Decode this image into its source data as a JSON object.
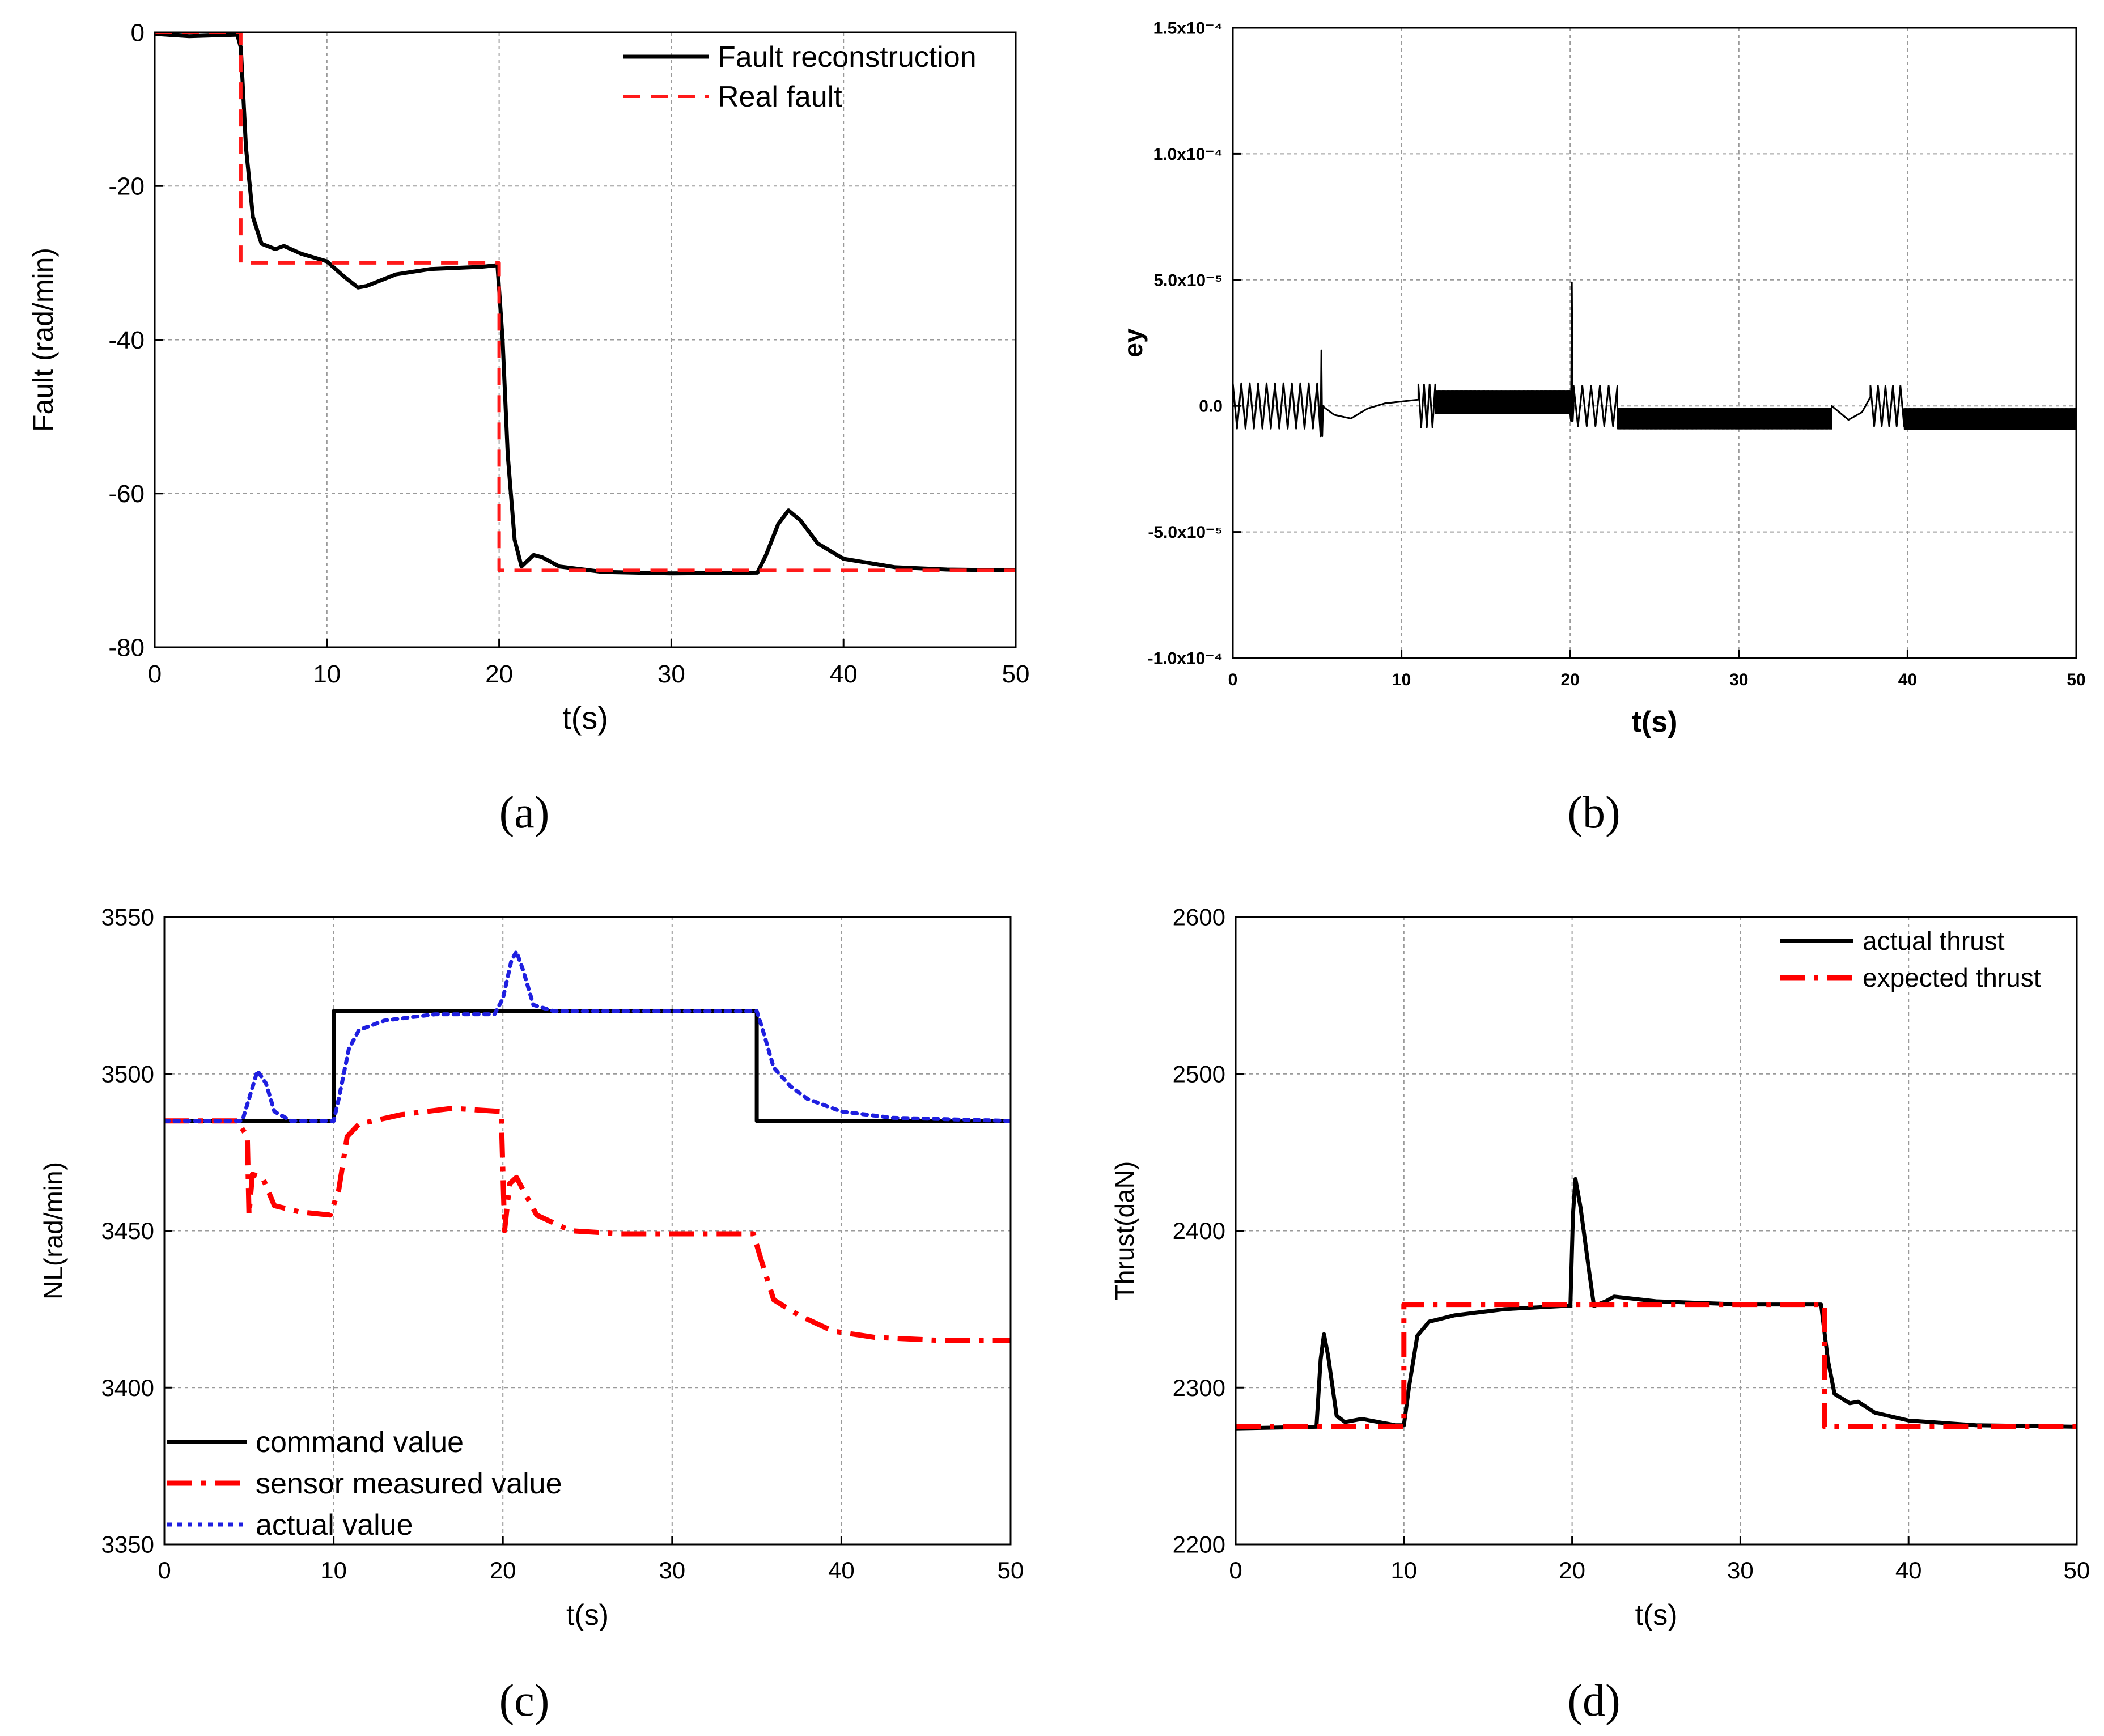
{
  "figure": {
    "labels": [
      "(a)",
      "(b)",
      "(c)",
      "(d)"
    ]
  },
  "chart_data": [
    {
      "id": "a",
      "type": "line",
      "label": "(a)",
      "xlabel": "t(s)",
      "ylabel": "Fault (rad/min)",
      "xlim": [
        0,
        50
      ],
      "ylim": [
        -80,
        0
      ],
      "xticks": [
        "0",
        "10",
        "20",
        "30",
        "40",
        "50"
      ],
      "yticks": [
        "0",
        "-20",
        "-40",
        "-60",
        "-80"
      ],
      "grid": true,
      "legend_position": "top-right",
      "series": [
        {
          "name": "Fault reconstruction",
          "color": "#000000",
          "style": "solid",
          "points": [
            [
              0,
              -0.2
            ],
            [
              2,
              -0.5
            ],
            [
              4.8,
              -0.3
            ],
            [
              5.0,
              -2
            ],
            [
              5.3,
              -15
            ],
            [
              5.7,
              -24
            ],
            [
              6.2,
              -27.5
            ],
            [
              7.0,
              -28.2
            ],
            [
              7.5,
              -27.8
            ],
            [
              8.5,
              -28.8
            ],
            [
              10,
              -29.8
            ],
            [
              11,
              -31.8
            ],
            [
              11.8,
              -33.2
            ],
            [
              12.3,
              -33.0
            ],
            [
              14,
              -31.5
            ],
            [
              16,
              -30.8
            ],
            [
              19,
              -30.5
            ],
            [
              19.9,
              -30.3
            ],
            [
              20.2,
              -40
            ],
            [
              20.5,
              -55
            ],
            [
              20.9,
              -66
            ],
            [
              21.3,
              -69.5
            ],
            [
              22.0,
              -68.0
            ],
            [
              22.5,
              -68.3
            ],
            [
              23.5,
              -69.5
            ],
            [
              26,
              -70.2
            ],
            [
              30,
              -70.4
            ],
            [
              35,
              -70.3
            ],
            [
              35.5,
              -68
            ],
            [
              36.2,
              -64
            ],
            [
              36.8,
              -62.2
            ],
            [
              37.5,
              -63.5
            ],
            [
              38.5,
              -66.5
            ],
            [
              40,
              -68.5
            ],
            [
              43,
              -69.6
            ],
            [
              46,
              -69.9
            ],
            [
              50,
              -70.0
            ]
          ]
        },
        {
          "name": "Real fault",
          "color": "#ff1a1a",
          "style": "dashed",
          "points": [
            [
              0,
              0
            ],
            [
              5,
              0
            ],
            [
              5,
              -30
            ],
            [
              20,
              -30
            ],
            [
              20,
              -70
            ],
            [
              50,
              -70
            ]
          ]
        }
      ]
    },
    {
      "id": "b",
      "type": "line",
      "label": "(b)",
      "xlabel": "t(s)",
      "ylabel": "ey",
      "xlim": [
        0,
        50
      ],
      "ylim": [
        -0.0001,
        0.00015
      ],
      "xticks": [
        "0",
        "10",
        "20",
        "30",
        "40",
        "50"
      ],
      "yticks": [
        "1.5x10⁻⁴",
        "1.0x10⁻⁴",
        "5.0x10⁻⁵",
        "0.0",
        "-5.0x10⁻⁵",
        "-1.0x10⁻⁴"
      ],
      "grid": true,
      "series": [
        {
          "name": "ey",
          "color": "#000000",
          "style": "solid",
          "segments": [
            {
              "kind": "osc",
              "t0": 0,
              "t1": 5,
              "center": 0.0,
              "amp": 9e-06,
              "period": 0.5
            },
            {
              "kind": "spike",
              "t": 5.2,
              "low": -1.2e-05,
              "high": 2.2e-05
            },
            {
              "kind": "curve",
              "points": [
                [
                  5.3,
                  0.0
                ],
                [
                  6,
                  -3.5e-06
                ],
                [
                  7,
                  -5e-06
                ],
                [
                  8,
                  -1e-06
                ],
                [
                  9,
                  1e-06
                ],
                [
                  11,
                  2.5e-06
                ]
              ]
            },
            {
              "kind": "osc",
              "t0": 11,
              "t1": 12,
              "center": 0.0,
              "amp": 8.5e-06,
              "period": 0.35
            },
            {
              "kind": "band",
              "t0": 12,
              "t1": 20,
              "center": 1.5e-06,
              "amp": 4.5e-06
            },
            {
              "kind": "spike",
              "t": 20.05,
              "low": -6e-06,
              "high": 4.9e-05
            },
            {
              "kind": "osc",
              "t0": 20.2,
              "t1": 22.8,
              "center": 0.0,
              "amp": 8e-06,
              "period": 0.5
            },
            {
              "kind": "band",
              "t0": 22.8,
              "t1": 35.5,
              "center": -5e-06,
              "amp": 4e-06
            },
            {
              "kind": "curve",
              "points": [
                [
                  35.5,
                  0.0
                ],
                [
                  36.5,
                  -5.5e-06
                ],
                [
                  37.3,
                  -2.5e-06
                ],
                [
                  37.8,
                  3.5e-06
                ]
              ]
            },
            {
              "kind": "osc",
              "t0": 37.8,
              "t1": 39.8,
              "center": 0.0,
              "amp": 8e-06,
              "period": 0.45
            },
            {
              "kind": "band",
              "t0": 39.8,
              "t1": 50,
              "center": -5.2e-06,
              "amp": 4e-06
            }
          ]
        }
      ]
    },
    {
      "id": "c",
      "type": "line",
      "label": "(c)",
      "xlabel": "t(s)",
      "ylabel": "NL(rad/min)",
      "xlim": [
        0,
        50
      ],
      "ylim": [
        3350,
        3550
      ],
      "xticks": [
        "0",
        "10",
        "20",
        "30",
        "40",
        "50"
      ],
      "yticks": [
        "3550",
        "3500",
        "3450",
        "3400",
        "3350"
      ],
      "grid": true,
      "legend_position": "bottom-left",
      "series": [
        {
          "name": "command value",
          "color": "#000000",
          "style": "solid",
          "points": [
            [
              0,
              3485
            ],
            [
              10,
              3485
            ],
            [
              10,
              3520
            ],
            [
              35,
              3520
            ],
            [
              35,
              3485
            ],
            [
              50,
              3485
            ]
          ]
        },
        {
          "name": "sensor measured value",
          "color": "#ff0000",
          "style": "dashdot",
          "points": [
            [
              0,
              3485
            ],
            [
              4.3,
              3485
            ],
            [
              4.9,
              3480
            ],
            [
              5.0,
              3455
            ],
            [
              5.2,
              3468
            ],
            [
              5.8,
              3467
            ],
            [
              6.5,
              3458
            ],
            [
              8,
              3456
            ],
            [
              9.8,
              3455
            ],
            [
              10.3,
              3463
            ],
            [
              10.8,
              3480
            ],
            [
              11.5,
              3484
            ],
            [
              14,
              3487
            ],
            [
              17,
              3489
            ],
            [
              19.9,
              3488
            ],
            [
              20.1,
              3450
            ],
            [
              20.4,
              3465
            ],
            [
              20.8,
              3467
            ],
            [
              21.3,
              3462
            ],
            [
              22,
              3455
            ],
            [
              24,
              3450
            ],
            [
              27,
              3449
            ],
            [
              32,
              3449
            ],
            [
              34.8,
              3449
            ],
            [
              35.3,
              3440
            ],
            [
              36,
              3428
            ],
            [
              37.5,
              3423
            ],
            [
              39.5,
              3418
            ],
            [
              42,
              3416
            ],
            [
              46,
              3415
            ],
            [
              50,
              3415
            ]
          ]
        },
        {
          "name": "actual value",
          "color": "#1f1fe0",
          "style": "dotted",
          "points": [
            [
              0,
              3485
            ],
            [
              4.6,
              3485
            ],
            [
              5.0,
              3492
            ],
            [
              5.5,
              3501
            ],
            [
              6.0,
              3497
            ],
            [
              6.5,
              3488
            ],
            [
              7.5,
              3485
            ],
            [
              10,
              3485
            ],
            [
              10.3,
              3492
            ],
            [
              10.9,
              3508
            ],
            [
              11.5,
              3514
            ],
            [
              13,
              3517
            ],
            [
              16,
              3519
            ],
            [
              19.5,
              3519
            ],
            [
              20.0,
              3524
            ],
            [
              20.5,
              3536
            ],
            [
              20.8,
              3539
            ],
            [
              21.2,
              3533
            ],
            [
              21.8,
              3522
            ],
            [
              23,
              3520
            ],
            [
              30,
              3520
            ],
            [
              35,
              3520
            ],
            [
              35.3,
              3515
            ],
            [
              36,
              3502
            ],
            [
              37,
              3496
            ],
            [
              38,
              3492
            ],
            [
              40,
              3488
            ],
            [
              43,
              3486
            ],
            [
              50,
              3485
            ]
          ]
        }
      ]
    },
    {
      "id": "d",
      "type": "line",
      "label": "(d)",
      "xlabel": "t(s)",
      "ylabel": "Thrust(daN)",
      "xlim": [
        0,
        50
      ],
      "ylim": [
        2200,
        2600
      ],
      "xticks": [
        "0",
        "10",
        "20",
        "30",
        "40",
        "50"
      ],
      "yticks": [
        "2600",
        "2500",
        "2400",
        "2300",
        "2200"
      ],
      "grid": true,
      "legend_position": "top-right",
      "series": [
        {
          "name": "actual thrust",
          "color": "#000000",
          "style": "solid",
          "points": [
            [
              0,
              2274
            ],
            [
              4.8,
              2275
            ],
            [
              5.05,
              2318
            ],
            [
              5.25,
              2334
            ],
            [
              5.5,
              2320
            ],
            [
              6.0,
              2282
            ],
            [
              6.5,
              2278
            ],
            [
              7.5,
              2280
            ],
            [
              9.5,
              2276
            ],
            [
              10.0,
              2276
            ],
            [
              10.3,
              2300
            ],
            [
              10.8,
              2333
            ],
            [
              11.5,
              2342
            ],
            [
              13,
              2346
            ],
            [
              16,
              2350
            ],
            [
              19.5,
              2352
            ],
            [
              19.9,
              2352
            ],
            [
              20.05,
              2410
            ],
            [
              20.2,
              2433
            ],
            [
              20.5,
              2415
            ],
            [
              21.0,
              2375
            ],
            [
              21.3,
              2352
            ],
            [
              22,
              2355
            ],
            [
              22.5,
              2358
            ],
            [
              25,
              2355
            ],
            [
              30,
              2353
            ],
            [
              34.8,
              2353
            ],
            [
              35.2,
              2318
            ],
            [
              35.6,
              2296
            ],
            [
              36.5,
              2290
            ],
            [
              37,
              2291
            ],
            [
              38,
              2284
            ],
            [
              40,
              2279
            ],
            [
              44,
              2276
            ],
            [
              50,
              2275
            ]
          ]
        },
        {
          "name": "expected thrust",
          "color": "#ff0000",
          "style": "dashdot",
          "points": [
            [
              0,
              2275
            ],
            [
              10,
              2275
            ],
            [
              10,
              2353
            ],
            [
              35,
              2353
            ],
            [
              35,
              2275
            ],
            [
              50,
              2275
            ]
          ]
        }
      ]
    }
  ]
}
